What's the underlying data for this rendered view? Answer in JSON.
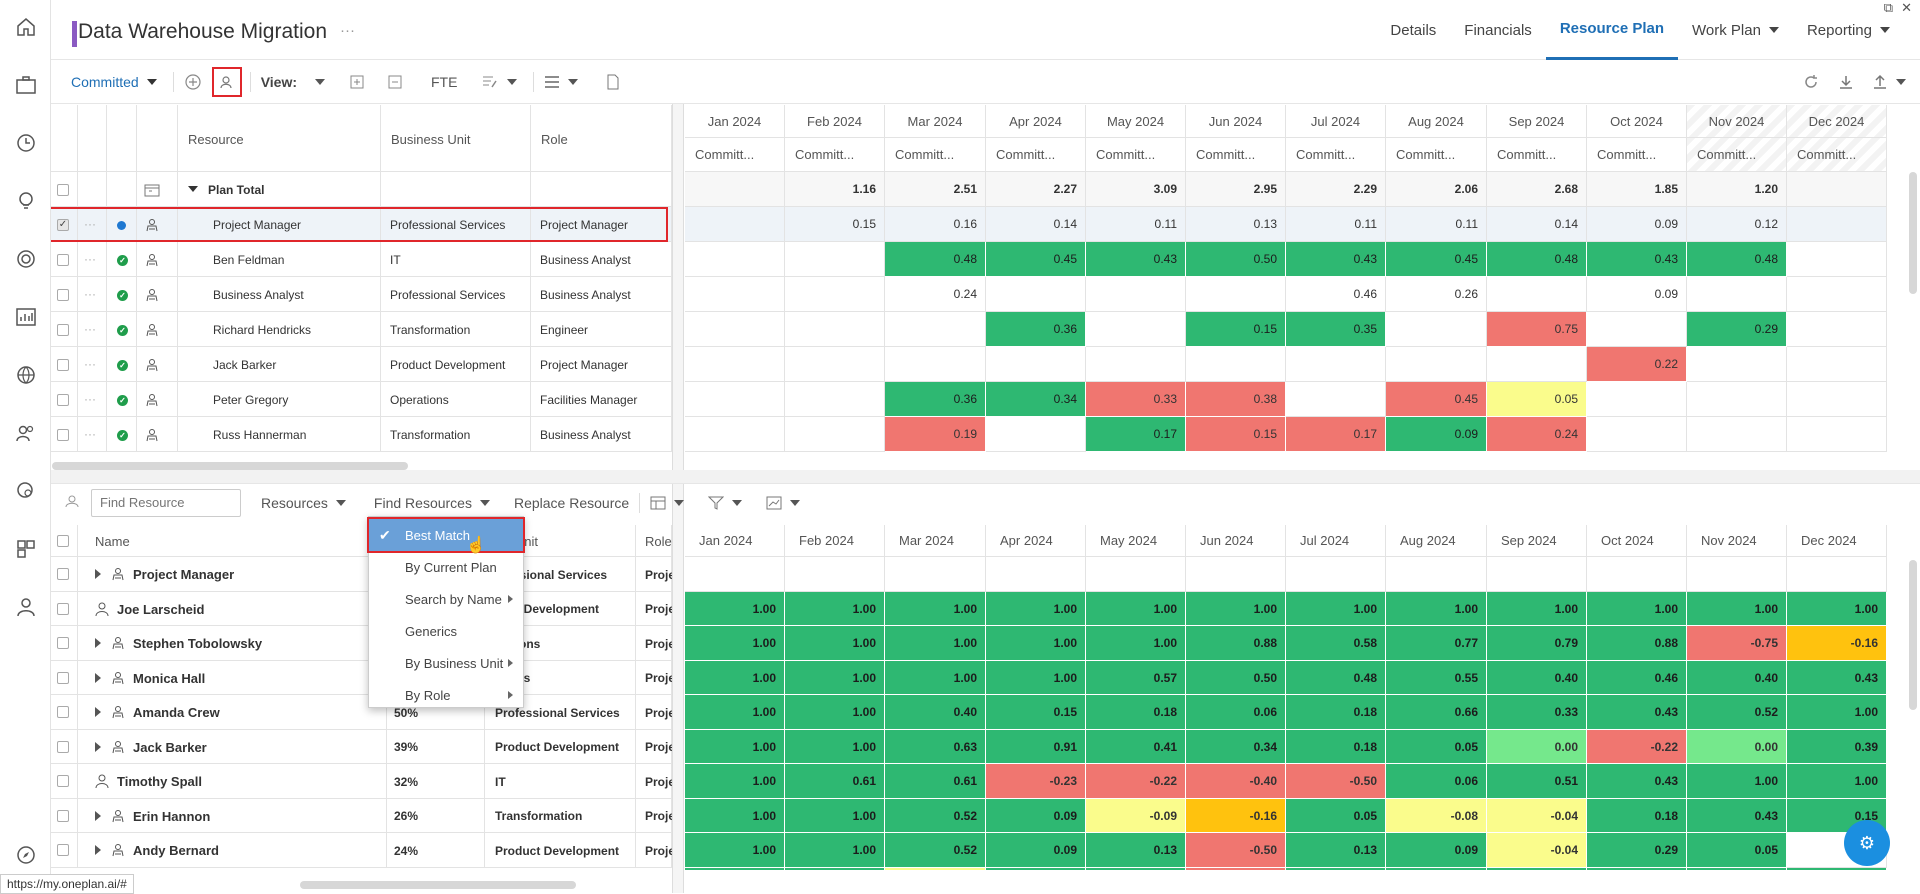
{
  "app": {
    "title": "Data Warehouse Migration",
    "title_more": "···"
  },
  "nav": {
    "tabs": [
      "Details",
      "Financials",
      "Resource Plan",
      "Work Plan",
      "Reporting"
    ],
    "active": "Resource Plan"
  },
  "toolbar": {
    "mode": "Committed",
    "view_label": "View:",
    "fte": "FTE"
  },
  "months": [
    "Jan 2024",
    "Feb 2024",
    "Mar 2024",
    "Apr 2024",
    "May 2024",
    "Jun 2024",
    "Jul 2024",
    "Aug 2024",
    "Sep 2024",
    "Oct 2024",
    "Nov 2024",
    "Dec 2024"
  ],
  "committed_label": "Committ...",
  "top_grid": {
    "headers": {
      "resource": "Resource",
      "business_unit": "Business Unit",
      "role": "Role"
    },
    "plan_total": {
      "label": "Plan Total",
      "values": [
        "",
        "1.16",
        "2.51",
        "2.27",
        "3.09",
        "2.95",
        "2.29",
        "2.06",
        "2.68",
        "1.85",
        "1.20",
        ""
      ]
    },
    "rows": [
      {
        "resource": "Project Manager",
        "unit": "Professional Services",
        "role": "Project Manager",
        "values": [
          "",
          "0.15",
          "0.16",
          "0.14",
          "0.11",
          "0.13",
          "0.11",
          "0.11",
          "0.14",
          "0.09",
          "0.12",
          ""
        ],
        "colors": [
          "",
          "",
          "",
          "",
          "",
          "",
          "",
          "",
          "",
          "",
          "",
          ""
        ]
      },
      {
        "resource": "Ben Feldman",
        "unit": "IT",
        "role": "Business Analyst",
        "values": [
          "",
          "",
          "0.48",
          "0.45",
          "0.43",
          "0.50",
          "0.43",
          "0.45",
          "0.48",
          "0.43",
          "0.48",
          ""
        ],
        "colors": [
          "",
          "",
          "g",
          "g",
          "g",
          "g",
          "g",
          "g",
          "g",
          "g",
          "g",
          ""
        ]
      },
      {
        "resource": "Business Analyst",
        "unit": "Professional Services",
        "role": "Business Analyst",
        "values": [
          "",
          "",
          "0.24",
          "",
          "",
          "",
          "0.46",
          "0.26",
          "",
          "0.09",
          "",
          ""
        ],
        "colors": [
          "",
          "",
          "",
          "",
          "",
          "",
          "",
          "",
          "",
          "",
          "",
          ""
        ]
      },
      {
        "resource": "Richard Hendricks",
        "unit": "Transformation",
        "role": "Engineer",
        "values": [
          "",
          "",
          "",
          "0.36",
          "",
          "0.15",
          "0.35",
          "",
          "0.75",
          "",
          "0.29",
          ""
        ],
        "colors": [
          "",
          "",
          "",
          "g",
          "",
          "g",
          "g",
          "",
          "r",
          "",
          "g",
          ""
        ]
      },
      {
        "resource": "Jack Barker",
        "unit": "Product Development",
        "role": "Project Manager",
        "values": [
          "",
          "",
          "",
          "",
          "",
          "",
          "",
          "",
          "",
          "0.22",
          "",
          ""
        ],
        "colors": [
          "",
          "",
          "",
          "",
          "",
          "",
          "",
          "",
          "",
          "r",
          "",
          ""
        ]
      },
      {
        "resource": "Peter Gregory",
        "unit": "Operations",
        "role": "Facilities Manager",
        "values": [
          "",
          "",
          "0.36",
          "0.34",
          "0.33",
          "0.38",
          "",
          "0.45",
          "0.05",
          "",
          "",
          ""
        ],
        "colors": [
          "",
          "",
          "g",
          "g",
          "r",
          "r",
          "",
          "r",
          "y",
          "",
          "",
          ""
        ]
      },
      {
        "resource": "Russ Hannerman",
        "unit": "Transformation",
        "role": "Business Analyst",
        "values": [
          "",
          "",
          "0.19",
          "",
          "0.17",
          "0.15",
          "0.17",
          "0.09",
          "0.24",
          "",
          "",
          ""
        ],
        "colors": [
          "",
          "",
          "r",
          "",
          "g",
          "r",
          "r",
          "g",
          "r",
          "",
          "",
          ""
        ]
      }
    ]
  },
  "bottom_toolbar": {
    "find_placeholder": "Find Resource",
    "resources": "Resources",
    "find_resources": "Find Resources",
    "replace": "Replace Resource"
  },
  "menu": {
    "items": [
      "Best Match",
      "By Current Plan",
      "Search by Name",
      "Generics",
      "By Business Unit",
      "By Role"
    ]
  },
  "bottom_grid": {
    "headers": {
      "name": "Name",
      "unit": "ess Unit",
      "role": "Role"
    },
    "rows": [
      {
        "name": "Project Manager",
        "pct": "",
        "unit": "ofessional Services",
        "role": "Proje",
        "person": false,
        "values": [
          "",
          "",
          "",
          "",
          "",
          "",
          "",
          "",
          "",
          "",
          "",
          ""
        ],
        "colors": [
          "",
          "",
          "",
          "",
          "",
          "",
          "",
          "",
          "",
          "",
          "",
          ""
        ]
      },
      {
        "name": "Joe Larscheid",
        "pct": "",
        "unit": "duct Development",
        "role": "Proje",
        "person": true,
        "values": [
          "1.00",
          "1.00",
          "1.00",
          "1.00",
          "1.00",
          "1.00",
          "1.00",
          "1.00",
          "1.00",
          "1.00",
          "1.00",
          "1.00"
        ],
        "colors": [
          "g",
          "g",
          "g",
          "g",
          "g",
          "g",
          "g",
          "g",
          "g",
          "g",
          "g",
          "g"
        ]
      },
      {
        "name": "Stephen Tobolowsky",
        "pct": "",
        "unit": "ications",
        "role": "Proje",
        "person": false,
        "values": [
          "1.00",
          "1.00",
          "1.00",
          "1.00",
          "1.00",
          "0.88",
          "0.58",
          "0.77",
          "0.79",
          "0.88",
          "-0.75",
          "-0.16"
        ],
        "colors": [
          "g",
          "g",
          "g",
          "g",
          "g",
          "g",
          "g",
          "g",
          "g",
          "g",
          "r",
          "o"
        ]
      },
      {
        "name": "Monica Hall",
        "pct": "",
        "unit": "ations",
        "role": "Proje",
        "person": false,
        "values": [
          "1.00",
          "1.00",
          "1.00",
          "1.00",
          "0.57",
          "0.50",
          "0.48",
          "0.55",
          "0.40",
          "0.46",
          "0.40",
          "0.43"
        ],
        "colors": [
          "g",
          "g",
          "g",
          "g",
          "g",
          "g",
          "g",
          "g",
          "g",
          "g",
          "g",
          "g"
        ]
      },
      {
        "name": "Amanda Crew",
        "pct": "50%",
        "unit": "Professional Services",
        "role": "Proje",
        "person": false,
        "values": [
          "1.00",
          "1.00",
          "0.40",
          "0.15",
          "0.18",
          "0.06",
          "0.18",
          "0.66",
          "0.33",
          "0.43",
          "0.52",
          "1.00"
        ],
        "colors": [
          "g",
          "g",
          "g",
          "g",
          "g",
          "g",
          "g",
          "g",
          "g",
          "g",
          "g",
          "g"
        ]
      },
      {
        "name": "Jack Barker",
        "pct": "39%",
        "unit": "Product Development",
        "role": "Proje",
        "person": false,
        "values": [
          "1.00",
          "1.00",
          "0.63",
          "0.91",
          "0.41",
          "0.34",
          "0.18",
          "0.05",
          "0.00",
          "-0.22",
          "0.00",
          "0.39"
        ],
        "colors": [
          "g",
          "g",
          "g",
          "g",
          "g",
          "g",
          "g",
          "g",
          "lg",
          "r",
          "lg",
          "g"
        ]
      },
      {
        "name": "Timothy Spall",
        "pct": "32%",
        "unit": "IT",
        "role": "Proje",
        "person": true,
        "values": [
          "1.00",
          "0.61",
          "0.61",
          "-0.23",
          "-0.22",
          "-0.40",
          "-0.50",
          "0.06",
          "0.51",
          "0.43",
          "1.00",
          "1.00"
        ],
        "colors": [
          "g",
          "g",
          "g",
          "r",
          "r",
          "r",
          "r",
          "g",
          "g",
          "g",
          "g",
          "g"
        ]
      },
      {
        "name": "Erin Hannon",
        "pct": "26%",
        "unit": "Transformation",
        "role": "Proje",
        "person": false,
        "values": [
          "1.00",
          "1.00",
          "0.52",
          "0.09",
          "-0.09",
          "-0.16",
          "0.05",
          "-0.08",
          "-0.04",
          "0.18",
          "0.43",
          "0.15"
        ],
        "colors": [
          "g",
          "g",
          "g",
          "g",
          "y",
          "o",
          "g",
          "y",
          "y",
          "g",
          "g",
          "g"
        ]
      },
      {
        "name": "Andy Bernard",
        "pct": "24%",
        "unit": "Product Development",
        "role": "Proje",
        "person": false,
        "values": [
          "1.00",
          "1.00",
          "0.52",
          "0.09",
          "0.13",
          "-0.50",
          "0.13",
          "0.09",
          "-0.04",
          "0.29",
          "0.05",
          ""
        ],
        "colors": [
          "g",
          "g",
          "g",
          "g",
          "g",
          "r",
          "g",
          "g",
          "y",
          "g",
          "g",
          ""
        ]
      }
    ]
  },
  "status_url": "https://my.oneplan.ai/#",
  "colors": {
    "accent": "#1f6fb5",
    "green": "#2eb872",
    "red": "#f07670",
    "yellow": "#fafc8c",
    "orange": "#ffc20e",
    "highlight": "#e0262b"
  }
}
